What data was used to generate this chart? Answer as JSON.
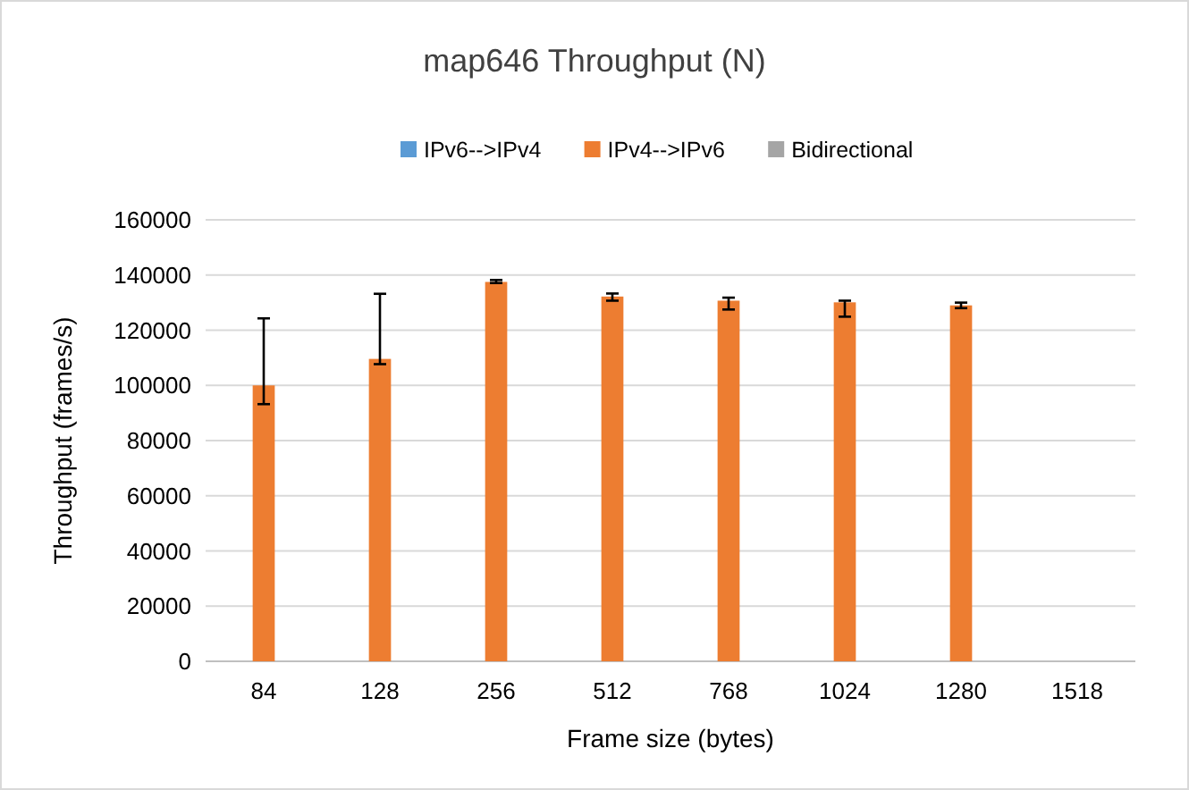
{
  "chart_data": {
    "type": "bar",
    "title": "map646 Throughput (N)",
    "xlabel": "Frame size (bytes)",
    "ylabel": "Throughput  (frames/s)",
    "categories": [
      "84",
      "128",
      "256",
      "512",
      "768",
      "1024",
      "1280",
      "1518"
    ],
    "series": [
      {
        "name": "IPv6-->IPv4",
        "color": "#5b9bd5",
        "values": [
          null,
          null,
          null,
          null,
          null,
          null,
          null,
          null
        ]
      },
      {
        "name": "IPv4-->IPv6",
        "color": "#ed7d31",
        "values": [
          100000,
          109600,
          137500,
          132200,
          130700,
          130100,
          129000,
          null
        ],
        "errors": [
          [
            93200,
            124300
          ],
          [
            107700,
            133200
          ],
          [
            137100,
            138200
          ],
          [
            130700,
            133300
          ],
          [
            127500,
            131800
          ],
          [
            124900,
            130700
          ],
          [
            128000,
            130000
          ],
          null
        ]
      },
      {
        "name": "Bidirectional",
        "color": "#a5a5a5",
        "values": [
          null,
          null,
          null,
          null,
          null,
          null,
          null,
          null
        ]
      }
    ],
    "ylim": [
      0,
      160000
    ],
    "yticks": [
      0,
      20000,
      40000,
      60000,
      80000,
      100000,
      120000,
      140000,
      160000
    ],
    "grid": "y",
    "legend": "top"
  }
}
